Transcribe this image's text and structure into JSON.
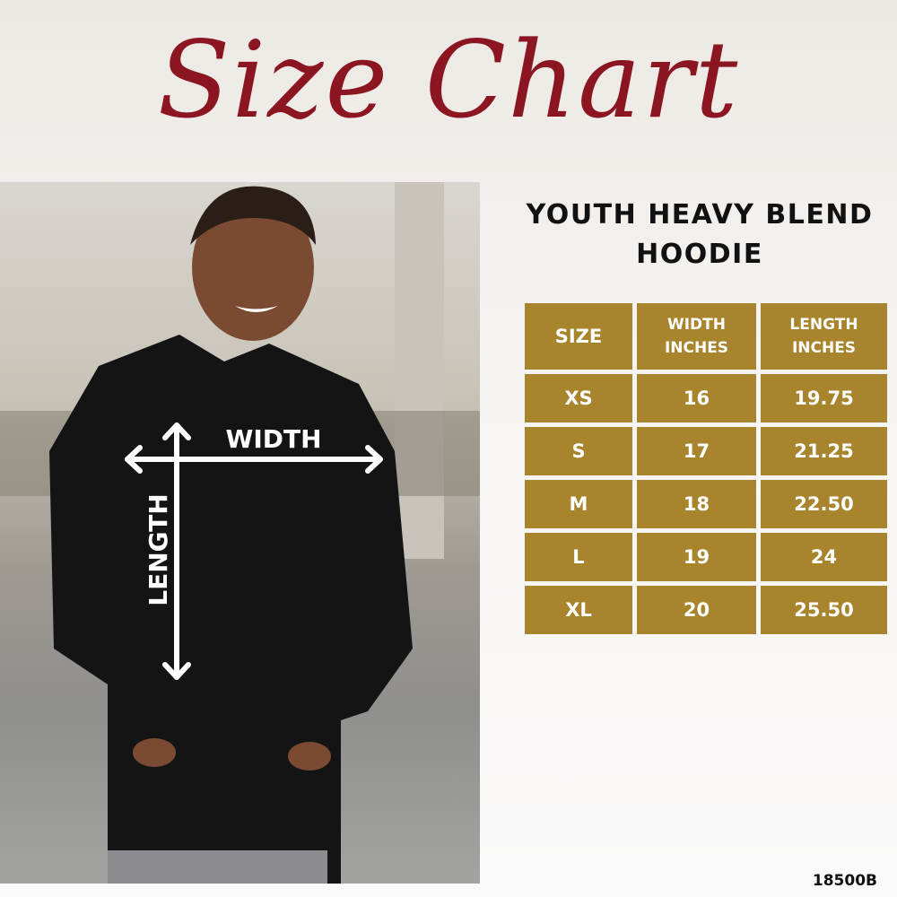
{
  "title": "Size Chart",
  "product": {
    "line1": "YOUTH HEAVY BLEND",
    "line2": "HOODIE"
  },
  "photo": {
    "width_label": "WIDTH",
    "length_label": "LENGTH"
  },
  "table": {
    "headers": [
      "SIZE",
      "WIDTH INCHES",
      "LENGTH INCHES"
    ],
    "rows": [
      [
        "XS",
        "16",
        "19.75"
      ],
      [
        "S",
        "17",
        "21.25"
      ],
      [
        "M",
        "18",
        "22.50"
      ],
      [
        "L",
        "19",
        "24"
      ],
      [
        "XL",
        "20",
        "25.50"
      ]
    ]
  },
  "product_code": "18500B",
  "colors": {
    "title": "#8b1520",
    "table": "#a8842c"
  }
}
